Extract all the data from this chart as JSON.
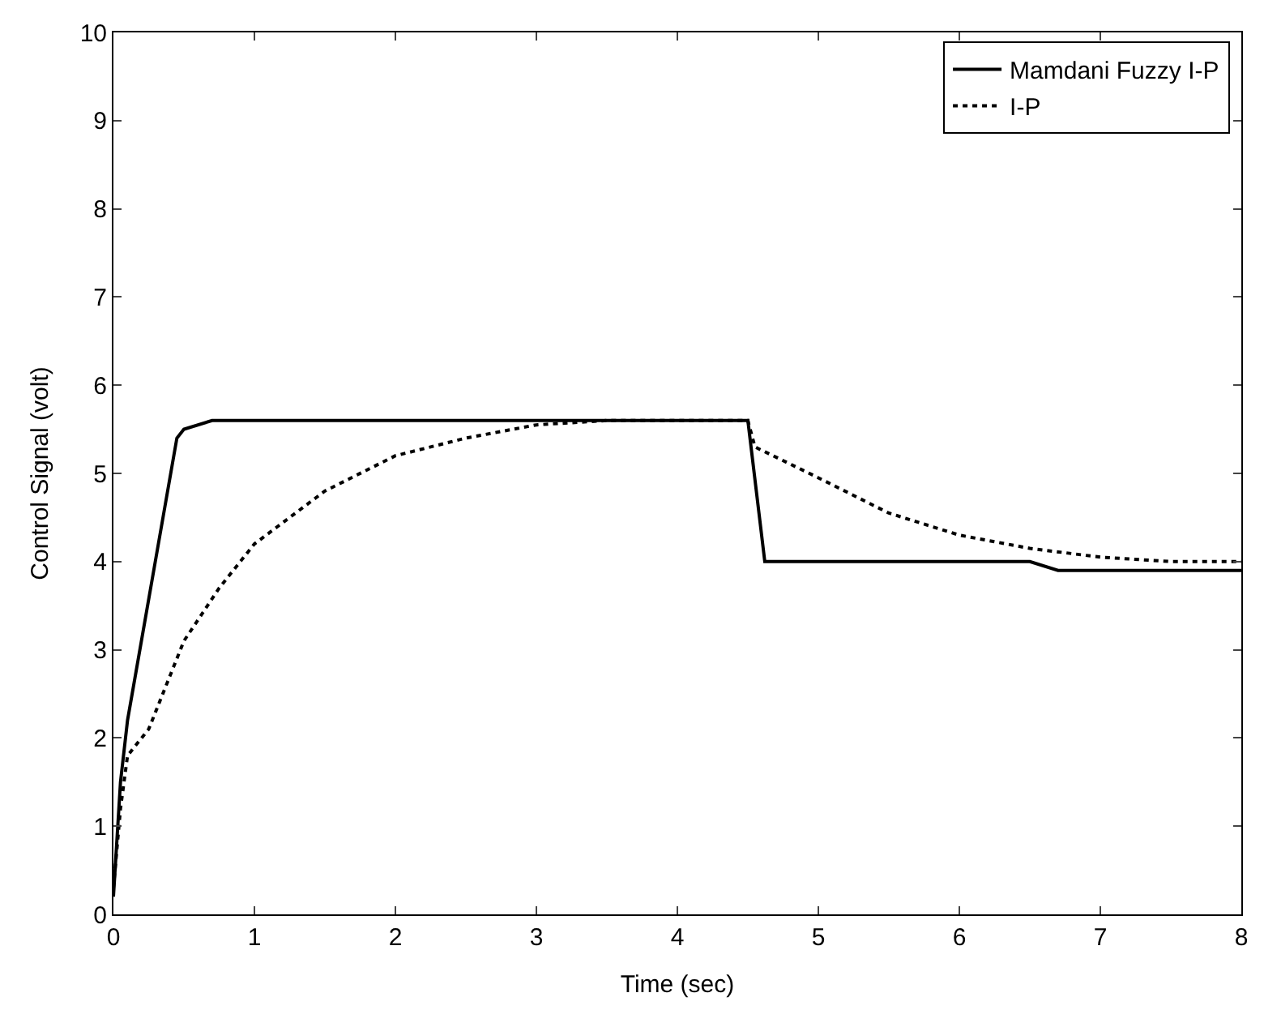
{
  "chart_data": {
    "type": "line",
    "xlabel": "Time (sec)",
    "ylabel": "Control Signal (volt)",
    "xlim": [
      0,
      8
    ],
    "ylim": [
      0,
      10
    ],
    "xticks": [
      0,
      1,
      2,
      3,
      4,
      5,
      6,
      7,
      8
    ],
    "yticks": [
      0,
      1,
      2,
      3,
      4,
      5,
      6,
      7,
      8,
      9,
      10
    ],
    "legend": "top right",
    "series": [
      {
        "name": "Mamdani Fuzzy I-P",
        "color": "#000000",
        "line_style": "solid",
        "x": [
          0,
          0.05,
          0.1,
          0.45,
          0.5,
          0.7,
          4.5,
          4.62,
          6.5,
          6.7,
          8
        ],
        "values": [
          0.2,
          1.5,
          2.2,
          5.4,
          5.5,
          5.6,
          5.6,
          4.0,
          4.0,
          3.9,
          3.9
        ]
      },
      {
        "name": "I-P",
        "color": "#000000",
        "line_style": "dotted",
        "x": [
          0,
          0.05,
          0.1,
          0.25,
          0.5,
          0.75,
          1,
          1.5,
          2,
          2.5,
          3,
          3.5,
          4.5,
          4.55,
          5,
          5.5,
          6,
          6.5,
          7,
          7.5,
          8
        ],
        "values": [
          0.3,
          1.2,
          1.8,
          2.1,
          3.1,
          3.7,
          4.2,
          4.8,
          5.2,
          5.4,
          5.55,
          5.6,
          5.6,
          5.3,
          4.95,
          4.55,
          4.3,
          4.15,
          4.05,
          4.0,
          4.0
        ]
      }
    ]
  }
}
